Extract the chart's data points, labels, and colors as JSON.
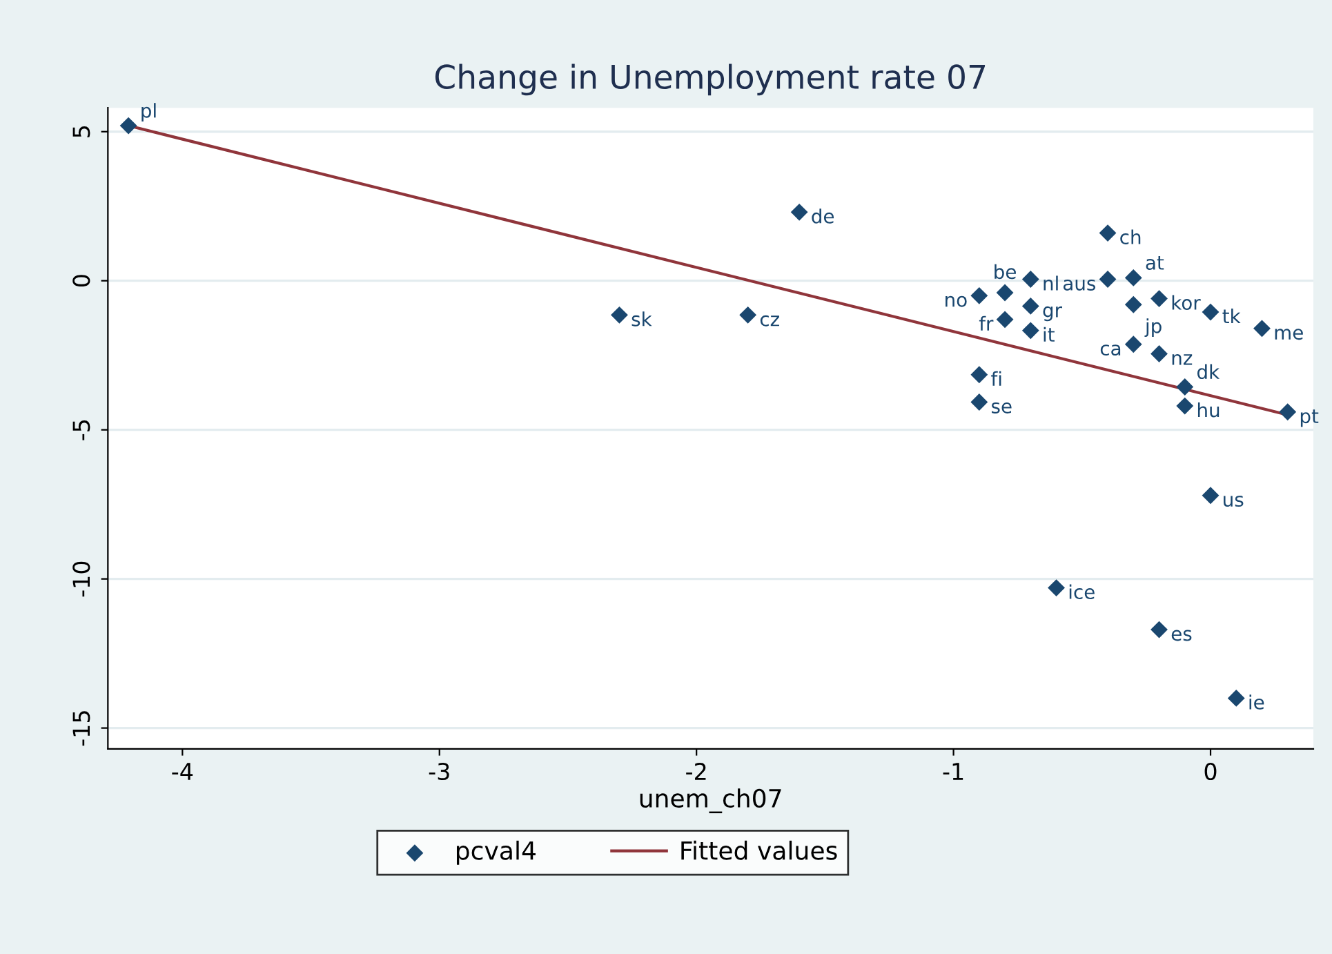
{
  "chart_data": {
    "type": "scatter",
    "title": "Change in Unemployment rate 07",
    "xlabel": "unem_ch07",
    "xlim": [
      -4.29,
      0.4
    ],
    "xticks": [
      -4,
      -3,
      -2,
      -1,
      0
    ],
    "ylim": [
      -15.7,
      5.8
    ],
    "yticks": [
      -15,
      -10,
      -5,
      0,
      5
    ],
    "grid": "y",
    "legend": "bottom",
    "marker": "diamond",
    "series": [
      {
        "name": "pcval4",
        "color": "#1a476f",
        "x": [
          -4.21,
          -1.6,
          -2.3,
          -1.8,
          -0.4,
          -0.7,
          -0.3,
          -0.4,
          -0.2,
          -0.3,
          0,
          0.2,
          -0.9,
          -0.8,
          -0.7,
          -0.8,
          -0.7,
          -0.3,
          -0.2,
          -0.1,
          -0.1,
          0.3,
          -0.9,
          -0.9,
          0,
          -0.6,
          -0.2,
          0.1
        ],
        "values": [
          5.2,
          2.3,
          -1.15,
          -1.15,
          1.6,
          0.05,
          0.1,
          0.05,
          -0.6,
          -0.8,
          -1.05,
          -1.6,
          -0.5,
          -0.4,
          -0.85,
          -1.3,
          -1.67,
          -2.13,
          -2.45,
          -3.56,
          -4.2,
          -4.4,
          -3.15,
          -4.07,
          -7.2,
          -10.3,
          -11.7,
          -14.0
        ]
      },
      {
        "name": "Fitted values",
        "type": "line",
        "color": "#90353b",
        "line_style": "solid",
        "marker": "none",
        "x": [
          -4.21,
          0.3
        ],
        "values": [
          5.2,
          -4.5
        ]
      }
    ],
    "annotations": [
      {
        "text": "pl",
        "x": -4.21,
        "y": 5.2
      },
      {
        "text": "de",
        "x": -1.6,
        "y": 2.3
      },
      {
        "text": "sk",
        "x": -2.3,
        "y": -1.15
      },
      {
        "text": "cz",
        "x": -1.8,
        "y": -1.15
      },
      {
        "text": "ch",
        "x": -0.4,
        "y": 1.6
      },
      {
        "text": "nl",
        "x": -0.7,
        "y": 0.05
      },
      {
        "text": "at",
        "x": -0.3,
        "y": 0.1
      },
      {
        "text": "aus",
        "x": -0.4,
        "y": 0.05
      },
      {
        "text": "kor",
        "x": -0.2,
        "y": -0.6
      },
      {
        "text": "jp",
        "x": -0.3,
        "y": -0.8
      },
      {
        "text": "tk",
        "x": 0,
        "y": -1.05
      },
      {
        "text": "me",
        "x": 0.2,
        "y": -1.6
      },
      {
        "text": "no",
        "x": -0.9,
        "y": -0.5
      },
      {
        "text": "be",
        "x": -0.8,
        "y": -0.4
      },
      {
        "text": "gr",
        "x": -0.7,
        "y": -0.85
      },
      {
        "text": "fr",
        "x": -0.8,
        "y": -1.3
      },
      {
        "text": "it",
        "x": -0.7,
        "y": -1.67
      },
      {
        "text": "ca",
        "x": -0.3,
        "y": -2.13
      },
      {
        "text": "nz",
        "x": -0.2,
        "y": -2.45
      },
      {
        "text": "dk",
        "x": -0.1,
        "y": -3.56
      },
      {
        "text": "hu",
        "x": -0.1,
        "y": -4.2
      },
      {
        "text": "pt",
        "x": 0.3,
        "y": -4.4
      },
      {
        "text": "fi",
        "x": -0.9,
        "y": -3.15
      },
      {
        "text": "se",
        "x": -0.9,
        "y": -4.07
      },
      {
        "text": "us",
        "x": 0,
        "y": -7.2
      },
      {
        "text": "ice",
        "x": -0.6,
        "y": -10.3
      },
      {
        "text": "es",
        "x": -0.2,
        "y": -11.7
      },
      {
        "text": "ie",
        "x": 0.1,
        "y": -14.0
      }
    ]
  }
}
